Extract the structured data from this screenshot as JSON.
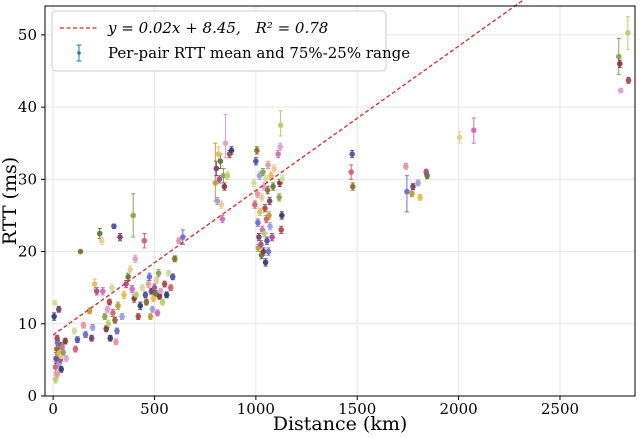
{
  "chart_data": {
    "type": "scatter",
    "xlabel": "Distance (km)",
    "ylabel": "RTT (ms)",
    "xlim": [
      -40,
      2870
    ],
    "ylim": [
      0,
      54
    ],
    "xticks": [
      0,
      500,
      1000,
      1500,
      2000,
      2500
    ],
    "yticks": [
      0,
      10,
      20,
      30,
      40,
      50
    ],
    "grid": true,
    "legend_position": "top-left",
    "fit_line": {
      "slope": 0.02,
      "intercept": 8.45,
      "r2": 0.78,
      "x_range": [
        0,
        2830
      ],
      "color": "#d62728",
      "label_prefix": "y = 0.02x + 8.45,",
      "label_r2": "R² = 0.78"
    },
    "series": [
      {
        "name": "Per-pair RTT mean and 75%-25% range",
        "color": "#1f77b4",
        "palette": [
          "#393b79",
          "#5254a3",
          "#6b6ecf",
          "#9c9ede",
          "#637939",
          "#8ca252",
          "#b5cf6b",
          "#cedb9c",
          "#8c6d31",
          "#bd9e39",
          "#e7ba52",
          "#e7cb94",
          "#843c39",
          "#ad494a",
          "#d6616b",
          "#e7969c",
          "#7b4173",
          "#a55194",
          "#ce6dbd",
          "#de9ed6"
        ],
        "points": [
          {
            "x": 5,
            "y": 11.0,
            "lo": 10.5,
            "hi": 11.5
          },
          {
            "x": 8,
            "y": 12.9,
            "lo": 12.6,
            "hi": 13.2
          },
          {
            "x": 12,
            "y": 4.0,
            "lo": 3.2,
            "hi": 4.8
          },
          {
            "x": 15,
            "y": 5.2,
            "lo": 4.5,
            "hi": 6.0
          },
          {
            "x": 18,
            "y": 6.5,
            "lo": 5.8,
            "hi": 7.2
          },
          {
            "x": 20,
            "y": 3.0,
            "lo": 2.5,
            "hi": 3.5
          },
          {
            "x": 22,
            "y": 7.5,
            "lo": 7.0,
            "hi": 8.0
          },
          {
            "x": 25,
            "y": 5.8,
            "lo": 5.3,
            "hi": 6.3
          },
          {
            "x": 28,
            "y": 12.0,
            "lo": 11.6,
            "hi": 12.4
          },
          {
            "x": 30,
            "y": 4.5,
            "lo": 4.0,
            "hi": 5.0
          },
          {
            "x": 32,
            "y": 6.0,
            "lo": 5.5,
            "hi": 6.5
          },
          {
            "x": 35,
            "y": 5.0,
            "lo": 4.6,
            "hi": 5.4
          },
          {
            "x": 38,
            "y": 7.0,
            "lo": 6.6,
            "hi": 7.4
          },
          {
            "x": 40,
            "y": 5.5,
            "lo": 5.0,
            "hi": 6.0
          },
          {
            "x": 45,
            "y": 6.8,
            "lo": 6.4,
            "hi": 7.2
          },
          {
            "x": 50,
            "y": 6.0,
            "lo": 5.6,
            "hi": 6.4
          },
          {
            "x": 60,
            "y": 7.6,
            "lo": 7.2,
            "hi": 8.0
          },
          {
            "x": 65,
            "y": 5.2,
            "lo": 4.8,
            "hi": 5.6
          },
          {
            "x": 12,
            "y": 2.3,
            "lo": 1.8,
            "hi": 2.8
          },
          {
            "x": 20,
            "y": 8.0,
            "lo": 7.6,
            "hi": 8.4
          },
          {
            "x": 40,
            "y": 3.7,
            "lo": 3.3,
            "hi": 4.1
          },
          {
            "x": 105,
            "y": 9.0,
            "lo": 8.6,
            "hi": 9.4
          },
          {
            "x": 110,
            "y": 6.5,
            "lo": 6.1,
            "hi": 6.9
          },
          {
            "x": 120,
            "y": 7.8,
            "lo": 7.4,
            "hi": 8.2
          },
          {
            "x": 135,
            "y": 20.0,
            "lo": 19.8,
            "hi": 20.2
          },
          {
            "x": 150,
            "y": 9.8,
            "lo": 9.4,
            "hi": 10.2
          },
          {
            "x": 160,
            "y": 8.5,
            "lo": 8.1,
            "hi": 8.9
          },
          {
            "x": 180,
            "y": 11.8,
            "lo": 11.4,
            "hi": 12.2
          },
          {
            "x": 190,
            "y": 8.0,
            "lo": 7.6,
            "hi": 8.4
          },
          {
            "x": 195,
            "y": 9.5,
            "lo": 9.1,
            "hi": 9.9
          },
          {
            "x": 205,
            "y": 15.5,
            "lo": 14.8,
            "hi": 16.2
          },
          {
            "x": 215,
            "y": 14.5,
            "lo": 14.0,
            "hi": 15.0
          },
          {
            "x": 230,
            "y": 22.5,
            "lo": 21.8,
            "hi": 23.2
          },
          {
            "x": 240,
            "y": 21.5,
            "lo": 21.0,
            "hi": 22.0
          },
          {
            "x": 245,
            "y": 14.5,
            "lo": 14.0,
            "hi": 15.0
          },
          {
            "x": 255,
            "y": 11.0,
            "lo": 10.6,
            "hi": 11.4
          },
          {
            "x": 262,
            "y": 9.3,
            "lo": 8.9,
            "hi": 9.7
          },
          {
            "x": 268,
            "y": 12.0,
            "lo": 11.6,
            "hi": 12.4
          },
          {
            "x": 272,
            "y": 10.0,
            "lo": 9.5,
            "hi": 10.5
          },
          {
            "x": 278,
            "y": 13.0,
            "lo": 12.6,
            "hi": 13.4
          },
          {
            "x": 282,
            "y": 8.0,
            "lo": 7.6,
            "hi": 8.4
          },
          {
            "x": 290,
            "y": 15.0,
            "lo": 14.5,
            "hi": 15.5
          },
          {
            "x": 295,
            "y": 11.5,
            "lo": 11.0,
            "hi": 12.0
          },
          {
            "x": 300,
            "y": 23.5,
            "lo": 23.2,
            "hi": 23.8
          },
          {
            "x": 305,
            "y": 10.5,
            "lo": 10.1,
            "hi": 10.9
          },
          {
            "x": 310,
            "y": 7.5,
            "lo": 7.1,
            "hi": 7.9
          },
          {
            "x": 315,
            "y": 9.0,
            "lo": 8.6,
            "hi": 9.4
          },
          {
            "x": 320,
            "y": 12.5,
            "lo": 12.0,
            "hi": 13.0
          },
          {
            "x": 330,
            "y": 22.0,
            "lo": 21.5,
            "hi": 22.5
          },
          {
            "x": 340,
            "y": 11.0,
            "lo": 10.6,
            "hi": 11.4
          },
          {
            "x": 350,
            "y": 14.0,
            "lo": 13.5,
            "hi": 14.5
          },
          {
            "x": 360,
            "y": 15.5,
            "lo": 15.0,
            "hi": 16.0
          },
          {
            "x": 370,
            "y": 16.5,
            "lo": 16.0,
            "hi": 17.0
          },
          {
            "x": 380,
            "y": 17.5,
            "lo": 17.0,
            "hi": 18.0
          },
          {
            "x": 390,
            "y": 14.8,
            "lo": 14.3,
            "hi": 15.3
          },
          {
            "x": 395,
            "y": 25.0,
            "lo": 22.0,
            "hi": 28.0
          },
          {
            "x": 400,
            "y": 13.5,
            "lo": 13.0,
            "hi": 14.0
          },
          {
            "x": 405,
            "y": 19.0,
            "lo": 18.5,
            "hi": 19.5
          },
          {
            "x": 410,
            "y": 14.0,
            "lo": 13.6,
            "hi": 14.4
          },
          {
            "x": 420,
            "y": 11.0,
            "lo": 10.6,
            "hi": 11.4
          },
          {
            "x": 430,
            "y": 12.5,
            "lo": 12.0,
            "hi": 13.0
          },
          {
            "x": 440,
            "y": 15.0,
            "lo": 14.6,
            "hi": 15.4
          },
          {
            "x": 450,
            "y": 21.5,
            "lo": 20.5,
            "hi": 22.5
          },
          {
            "x": 455,
            "y": 14.0,
            "lo": 13.6,
            "hi": 14.4
          },
          {
            "x": 460,
            "y": 13.0,
            "lo": 12.6,
            "hi": 13.4
          },
          {
            "x": 470,
            "y": 15.5,
            "lo": 15.0,
            "hi": 16.0
          },
          {
            "x": 475,
            "y": 16.5,
            "lo": 16.0,
            "hi": 17.0
          },
          {
            "x": 480,
            "y": 11.0,
            "lo": 10.6,
            "hi": 11.4
          },
          {
            "x": 485,
            "y": 14.5,
            "lo": 14.1,
            "hi": 14.9
          },
          {
            "x": 490,
            "y": 12.0,
            "lo": 11.6,
            "hi": 12.4
          },
          {
            "x": 495,
            "y": 13.5,
            "lo": 13.1,
            "hi": 13.9
          },
          {
            "x": 500,
            "y": 15.0,
            "lo": 14.5,
            "hi": 15.5
          },
          {
            "x": 505,
            "y": 14.2,
            "lo": 13.8,
            "hi": 14.6
          },
          {
            "x": 510,
            "y": 16.0,
            "lo": 15.6,
            "hi": 16.4
          },
          {
            "x": 515,
            "y": 11.5,
            "lo": 11.1,
            "hi": 11.9
          },
          {
            "x": 520,
            "y": 17.0,
            "lo": 16.5,
            "hi": 17.5
          },
          {
            "x": 525,
            "y": 13.8,
            "lo": 13.4,
            "hi": 14.2
          },
          {
            "x": 530,
            "y": 14.5,
            "lo": 14.1,
            "hi": 14.9
          },
          {
            "x": 540,
            "y": 13.0,
            "lo": 12.6,
            "hi": 13.4
          },
          {
            "x": 550,
            "y": 15.5,
            "lo": 15.1,
            "hi": 15.9
          },
          {
            "x": 560,
            "y": 14.0,
            "lo": 13.6,
            "hi": 14.4
          },
          {
            "x": 570,
            "y": 17.0,
            "lo": 16.6,
            "hi": 17.4
          },
          {
            "x": 580,
            "y": 15.0,
            "lo": 14.6,
            "hi": 15.4
          },
          {
            "x": 590,
            "y": 16.5,
            "lo": 16.1,
            "hi": 16.9
          },
          {
            "x": 600,
            "y": 19.0,
            "lo": 18.6,
            "hi": 19.4
          },
          {
            "x": 620,
            "y": 21.5,
            "lo": 21.1,
            "hi": 21.9
          },
          {
            "x": 640,
            "y": 22.0,
            "lo": 21.0,
            "hi": 23.0
          },
          {
            "x": 800,
            "y": 29.5,
            "lo": 27.0,
            "hi": 35.0
          },
          {
            "x": 805,
            "y": 31.5,
            "lo": 30.5,
            "hi": 32.5
          },
          {
            "x": 810,
            "y": 27.0,
            "lo": 26.5,
            "hi": 27.5
          },
          {
            "x": 815,
            "y": 33.5,
            "lo": 32.5,
            "hi": 34.5
          },
          {
            "x": 820,
            "y": 30.0,
            "lo": 29.5,
            "hi": 30.5
          },
          {
            "x": 825,
            "y": 32.5,
            "lo": 31.5,
            "hi": 33.5
          },
          {
            "x": 830,
            "y": 26.5,
            "lo": 26.0,
            "hi": 27.0
          },
          {
            "x": 835,
            "y": 24.5,
            "lo": 24.0,
            "hi": 25.0
          },
          {
            "x": 840,
            "y": 30.5,
            "lo": 29.5,
            "hi": 31.5
          },
          {
            "x": 845,
            "y": 29.0,
            "lo": 28.5,
            "hi": 29.5
          },
          {
            "x": 850,
            "y": 35.0,
            "lo": 33.0,
            "hi": 39.0
          },
          {
            "x": 860,
            "y": 30.5,
            "lo": 30.0,
            "hi": 31.0
          },
          {
            "x": 870,
            "y": 33.5,
            "lo": 33.0,
            "hi": 34.0
          },
          {
            "x": 880,
            "y": 34.0,
            "lo": 33.5,
            "hi": 34.5
          },
          {
            "x": 990,
            "y": 29.5,
            "lo": 29.0,
            "hi": 30.0
          },
          {
            "x": 995,
            "y": 26.5,
            "lo": 26.0,
            "hi": 27.0
          },
          {
            "x": 1000,
            "y": 32.5,
            "lo": 32.0,
            "hi": 33.0
          },
          {
            "x": 1005,
            "y": 34.0,
            "lo": 33.5,
            "hi": 34.5
          },
          {
            "x": 1008,
            "y": 28.0,
            "lo": 27.5,
            "hi": 28.5
          },
          {
            "x": 1010,
            "y": 24.0,
            "lo": 23.5,
            "hi": 24.5
          },
          {
            "x": 1012,
            "y": 20.5,
            "lo": 20.0,
            "hi": 21.0
          },
          {
            "x": 1015,
            "y": 22.0,
            "lo": 21.5,
            "hi": 22.5
          },
          {
            "x": 1018,
            "y": 30.5,
            "lo": 30.0,
            "hi": 31.0
          },
          {
            "x": 1020,
            "y": 25.5,
            "lo": 25.0,
            "hi": 26.0
          },
          {
            "x": 1025,
            "y": 21.0,
            "lo": 20.5,
            "hi": 21.5
          },
          {
            "x": 1028,
            "y": 19.5,
            "lo": 19.0,
            "hi": 20.0
          },
          {
            "x": 1030,
            "y": 27.5,
            "lo": 27.0,
            "hi": 28.0
          },
          {
            "x": 1032,
            "y": 23.0,
            "lo": 22.5,
            "hi": 23.5
          },
          {
            "x": 1035,
            "y": 31.0,
            "lo": 30.5,
            "hi": 31.5
          },
          {
            "x": 1038,
            "y": 20.0,
            "lo": 19.5,
            "hi": 20.5
          },
          {
            "x": 1040,
            "y": 29.0,
            "lo": 28.5,
            "hi": 29.5
          },
          {
            "x": 1042,
            "y": 22.5,
            "lo": 22.0,
            "hi": 23.0
          },
          {
            "x": 1045,
            "y": 26.0,
            "lo": 25.5,
            "hi": 26.5
          },
          {
            "x": 1048,
            "y": 18.5,
            "lo": 18.0,
            "hi": 19.0
          },
          {
            "x": 1050,
            "y": 30.0,
            "lo": 29.5,
            "hi": 30.5
          },
          {
            "x": 1052,
            "y": 24.5,
            "lo": 24.0,
            "hi": 25.0
          },
          {
            "x": 1055,
            "y": 21.5,
            "lo": 21.0,
            "hi": 22.0
          },
          {
            "x": 1058,
            "y": 28.5,
            "lo": 28.0,
            "hi": 29.0
          },
          {
            "x": 1060,
            "y": 32.0,
            "lo": 31.5,
            "hi": 32.5
          },
          {
            "x": 1062,
            "y": 20.0,
            "lo": 19.5,
            "hi": 20.5
          },
          {
            "x": 1065,
            "y": 25.0,
            "lo": 24.5,
            "hi": 25.5
          },
          {
            "x": 1068,
            "y": 27.0,
            "lo": 26.5,
            "hi": 27.5
          },
          {
            "x": 1070,
            "y": 23.5,
            "lo": 23.0,
            "hi": 24.0
          },
          {
            "x": 1075,
            "y": 30.5,
            "lo": 30.0,
            "hi": 31.0
          },
          {
            "x": 1080,
            "y": 22.0,
            "lo": 21.5,
            "hi": 22.5
          },
          {
            "x": 1085,
            "y": 29.0,
            "lo": 28.5,
            "hi": 29.5
          },
          {
            "x": 1090,
            "y": 31.5,
            "lo": 31.0,
            "hi": 32.0
          },
          {
            "x": 1110,
            "y": 33.5,
            "lo": 33.0,
            "hi": 34.0
          },
          {
            "x": 1115,
            "y": 27.5,
            "lo": 27.0,
            "hi": 28.0
          },
          {
            "x": 1118,
            "y": 29.5,
            "lo": 29.0,
            "hi": 30.0
          },
          {
            "x": 1120,
            "y": 34.5,
            "lo": 34.0,
            "hi": 35.0
          },
          {
            "x": 1122,
            "y": 37.5,
            "lo": 36.0,
            "hi": 39.5
          },
          {
            "x": 1125,
            "y": 23.0,
            "lo": 22.5,
            "hi": 23.5
          },
          {
            "x": 1128,
            "y": 25.0,
            "lo": 24.5,
            "hi": 25.5
          },
          {
            "x": 1130,
            "y": 30.0,
            "lo": 29.5,
            "hi": 30.5
          },
          {
            "x": 1470,
            "y": 31.0,
            "lo": 30.0,
            "hi": 32.0
          },
          {
            "x": 1475,
            "y": 33.5,
            "lo": 33.0,
            "hi": 34.0
          },
          {
            "x": 1478,
            "y": 29.0,
            "lo": 28.5,
            "hi": 29.5
          },
          {
            "x": 1740,
            "y": 31.8,
            "lo": 31.4,
            "hi": 32.2
          },
          {
            "x": 1745,
            "y": 28.3,
            "lo": 25.5,
            "hi": 30.5
          },
          {
            "x": 1770,
            "y": 28.0,
            "lo": 27.6,
            "hi": 28.4
          },
          {
            "x": 1775,
            "y": 29.0,
            "lo": 28.6,
            "hi": 29.4
          },
          {
            "x": 1800,
            "y": 29.5,
            "lo": 29.1,
            "hi": 29.9
          },
          {
            "x": 1810,
            "y": 27.5,
            "lo": 27.1,
            "hi": 27.9
          },
          {
            "x": 1840,
            "y": 31.0,
            "lo": 30.6,
            "hi": 31.4
          },
          {
            "x": 1845,
            "y": 30.5,
            "lo": 30.1,
            "hi": 30.9
          },
          {
            "x": 2005,
            "y": 35.8,
            "lo": 35.0,
            "hi": 36.6
          },
          {
            "x": 2075,
            "y": 36.8,
            "lo": 35.0,
            "hi": 38.5
          },
          {
            "x": 2790,
            "y": 47.0,
            "lo": 44.5,
            "hi": 49.5
          },
          {
            "x": 2795,
            "y": 46.0,
            "lo": 45.5,
            "hi": 46.5
          },
          {
            "x": 2800,
            "y": 42.3,
            "lo": 42.0,
            "hi": 42.6
          },
          {
            "x": 2835,
            "y": 50.3,
            "lo": 48.0,
            "hi": 52.5
          },
          {
            "x": 2838,
            "y": 43.7,
            "lo": 43.3,
            "hi": 44.1
          }
        ]
      }
    ]
  }
}
